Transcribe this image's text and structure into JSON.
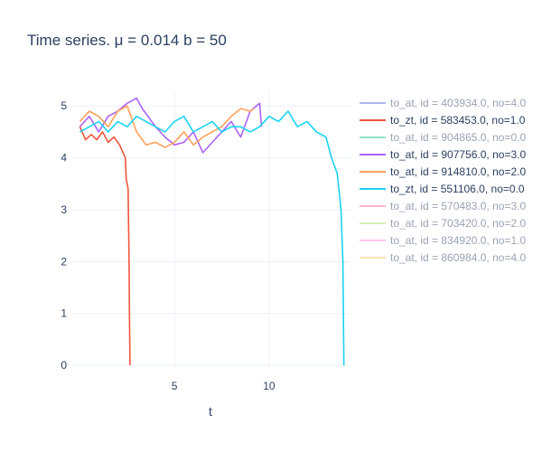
{
  "chart_data": {
    "type": "line",
    "title": "Time series. μ = 0.014 b = 50",
    "xlabel": "t",
    "ylabel": "",
    "xlim": [
      -0.4,
      14.3
    ],
    "ylim": [
      -0.05,
      5.3
    ],
    "x_ticks": [
      5,
      10
    ],
    "y_ticks": [
      0,
      1,
      2,
      3,
      4,
      5
    ],
    "grid": true,
    "legend_position": "right",
    "series": [
      {
        "name": "to_at, id = 403934.0, no=4.0",
        "color": "#aab6ee",
        "faded": true,
        "x": [],
        "y": []
      },
      {
        "name": "to_zt, id = 583453.0, no=1.0",
        "color": "#ef553b",
        "faded": false,
        "x": [
          0,
          0.3,
          0.6,
          0.9,
          1.2,
          1.5,
          1.8,
          2.1,
          2.4,
          2.45,
          2.55,
          2.6,
          2.62,
          2.65
        ],
        "y": [
          4.6,
          4.35,
          4.45,
          4.35,
          4.5,
          4.3,
          4.4,
          4.25,
          4.0,
          3.6,
          3.4,
          2.0,
          1.0,
          0.0
        ]
      },
      {
        "name": "to_at, id = 904865.0, no=0.0",
        "color": "#8fe3c9",
        "faded": true,
        "x": [],
        "y": []
      },
      {
        "name": "to_at, id = 907756.0, no=3.0",
        "color": "#ab63fa",
        "faded": false,
        "x": [
          0,
          0.5,
          1,
          1.5,
          2,
          2.5,
          3,
          3.3,
          3.6,
          4,
          4.5,
          5,
          5.5,
          6,
          6.5,
          7,
          7.5,
          8,
          8.5,
          9,
          9.5,
          9.6
        ],
        "y": [
          4.6,
          4.8,
          4.5,
          4.8,
          4.9,
          5.05,
          5.15,
          4.95,
          4.8,
          4.6,
          4.4,
          4.25,
          4.3,
          4.5,
          4.1,
          4.3,
          4.5,
          4.7,
          4.4,
          4.9,
          5.05,
          4.6
        ]
      },
      {
        "name": "to_at, id = 914810.0, no=2.0",
        "color": "#ffa15a",
        "faded": false,
        "x": [
          0,
          0.5,
          1,
          1.5,
          2,
          2.5,
          3,
          3.5,
          4,
          4.5,
          5,
          5.5,
          6,
          6.5,
          7,
          7.5,
          8,
          8.5,
          9,
          9.2
        ],
        "y": [
          4.7,
          4.9,
          4.8,
          4.6,
          4.9,
          5.0,
          4.5,
          4.25,
          4.3,
          4.2,
          4.3,
          4.5,
          4.25,
          4.4,
          4.5,
          4.6,
          4.8,
          4.95,
          4.9,
          4.95
        ]
      },
      {
        "name": "to_zt, id = 551106.0, no=0.0",
        "color": "#19d3f3",
        "faded": false,
        "x": [
          0,
          0.5,
          1,
          1.5,
          2,
          2.5,
          3,
          3.5,
          4,
          4.5,
          5,
          5.5,
          6,
          6.5,
          7,
          7.5,
          8,
          8.5,
          9,
          9.5,
          10,
          10.5,
          11,
          11.5,
          12,
          12.5,
          13,
          13.3,
          13.6,
          13.8,
          13.9,
          13.95
        ],
        "y": [
          4.5,
          4.6,
          4.7,
          4.5,
          4.7,
          4.6,
          4.8,
          4.7,
          4.6,
          4.5,
          4.7,
          4.8,
          4.5,
          4.6,
          4.7,
          4.5,
          4.6,
          4.6,
          4.5,
          4.6,
          4.8,
          4.7,
          4.9,
          4.6,
          4.7,
          4.5,
          4.4,
          4.0,
          3.7,
          3.0,
          2.0,
          0.0
        ]
      },
      {
        "name": "to_at, id = 570483.0, no=3.0",
        "color": "#ffb3d1",
        "faded": true,
        "x": [],
        "y": []
      },
      {
        "name": "to_at, id = 703420.0, no=2.0",
        "color": "#d4f0b8",
        "faded": true,
        "x": [],
        "y": []
      },
      {
        "name": "to_at, id = 834920.0, no=1.0",
        "color": "#f8c8f3",
        "faded": true,
        "x": [],
        "y": []
      },
      {
        "name": "to_at, id = 860984.0, no=4.0",
        "color": "#ffe2b0",
        "faded": true,
        "x": [],
        "y": []
      }
    ]
  },
  "colors": {
    "text": "#2a3f5f",
    "grid": "#ebf0f8",
    "faded_text": "#9aa3b3"
  }
}
